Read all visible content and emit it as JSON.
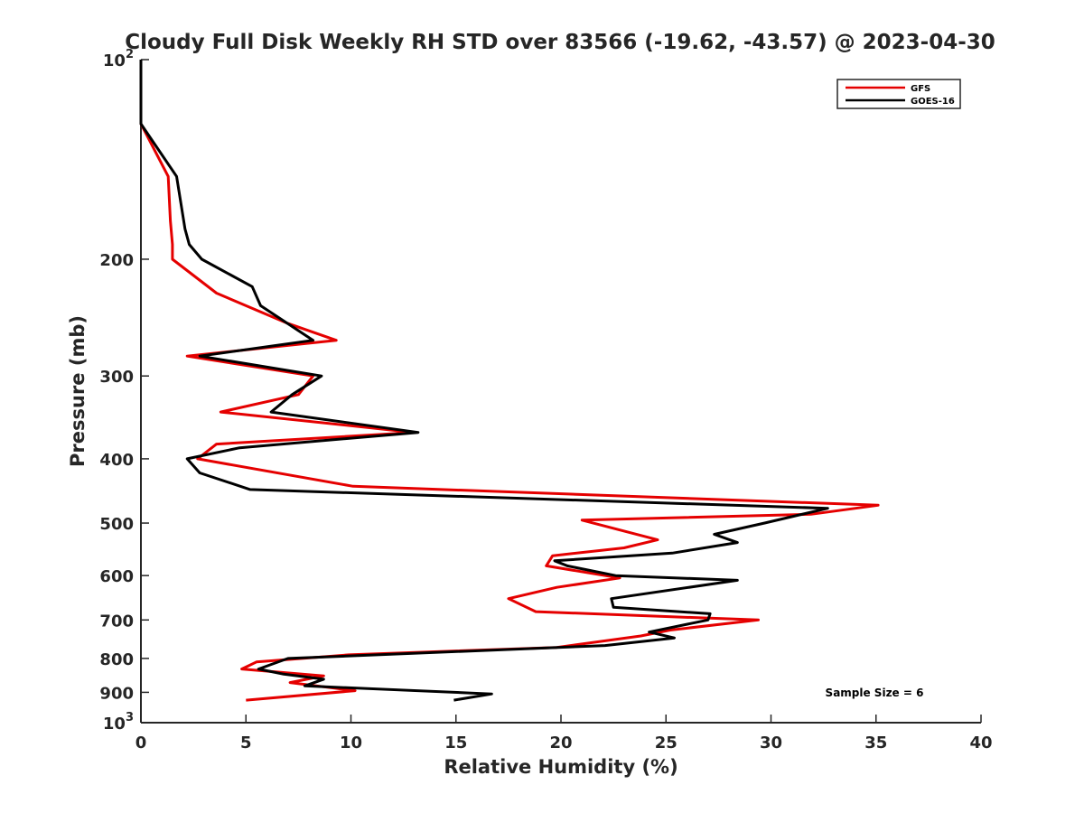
{
  "chart_data": {
    "type": "line",
    "title": "Cloudy Full Disk Weekly RH STD over 83566 (-19.62, -43.57) @ 2023-04-30",
    "xlabel": "Relative Humidity (%)",
    "ylabel": "Pressure (mb)",
    "xlim": [
      0,
      40
    ],
    "ylim": [
      100,
      1000
    ],
    "yscale": "log",
    "y_reversed": true,
    "grid": false,
    "x_ticks": [
      0,
      5,
      10,
      15,
      20,
      25,
      30,
      35,
      40
    ],
    "y_ticks": [
      {
        "value": 100,
        "label_base": "10",
        "label_exp": "2"
      },
      {
        "value": 200,
        "label": "200"
      },
      {
        "value": 300,
        "label": "300"
      },
      {
        "value": 400,
        "label": "400"
      },
      {
        "value": 500,
        "label": "500"
      },
      {
        "value": 600,
        "label": "600"
      },
      {
        "value": 700,
        "label": "700"
      },
      {
        "value": 800,
        "label": "800"
      },
      {
        "value": 900,
        "label": "900"
      },
      {
        "value": 1000,
        "label_base": "10",
        "label_exp": "3"
      }
    ],
    "legend_position": "top-right",
    "annotation": "Sample Size = 6",
    "series": [
      {
        "name": "GFS",
        "color": "#e50000",
        "points": [
          [
            0,
            100
          ],
          [
            0,
            125
          ],
          [
            1.3,
            150
          ],
          [
            1.4,
            175
          ],
          [
            1.5,
            190
          ],
          [
            1.5,
            200
          ],
          [
            3.6,
            225
          ],
          [
            7,
            250
          ],
          [
            9.3,
            265
          ],
          [
            2.2,
            280
          ],
          [
            8.2,
            300
          ],
          [
            7.5,
            320
          ],
          [
            3.8,
            340
          ],
          [
            13,
            365
          ],
          [
            3.6,
            380
          ],
          [
            2.7,
            400
          ],
          [
            10.1,
            440
          ],
          [
            35.1,
            470
          ],
          [
            31.9,
            485
          ],
          [
            21,
            495
          ],
          [
            24.6,
            530
          ],
          [
            23,
            545
          ],
          [
            19.6,
            560
          ],
          [
            19.3,
            580
          ],
          [
            22.8,
            605
          ],
          [
            19.8,
            625
          ],
          [
            17.5,
            650
          ],
          [
            18.8,
            680
          ],
          [
            29.4,
            700
          ],
          [
            25.2,
            725
          ],
          [
            23.8,
            740
          ],
          [
            19.8,
            770
          ],
          [
            9.9,
            790
          ],
          [
            5.5,
            810
          ],
          [
            4.8,
            830
          ],
          [
            8.7,
            850
          ],
          [
            7.1,
            870
          ],
          [
            10.2,
            895
          ],
          [
            5,
            925
          ]
        ]
      },
      {
        "name": "GOES-16",
        "color": "#000000",
        "points": [
          [
            0,
            100
          ],
          [
            0,
            125
          ],
          [
            1.7,
            150
          ],
          [
            2.1,
            180
          ],
          [
            2.3,
            190
          ],
          [
            2.9,
            200
          ],
          [
            5.3,
            220
          ],
          [
            5.7,
            235
          ],
          [
            8.2,
            265
          ],
          [
            2.8,
            280
          ],
          [
            8.6,
            300
          ],
          [
            7.2,
            320
          ],
          [
            6.2,
            340
          ],
          [
            13.2,
            365
          ],
          [
            4.7,
            385
          ],
          [
            2.2,
            400
          ],
          [
            2.8,
            420
          ],
          [
            5.2,
            445
          ],
          [
            32.7,
            475
          ],
          [
            29.7,
            500
          ],
          [
            27.3,
            520
          ],
          [
            28.4,
            535
          ],
          [
            25.3,
            555
          ],
          [
            19.7,
            570
          ],
          [
            20.3,
            580
          ],
          [
            22.6,
            600
          ],
          [
            28.4,
            610
          ],
          [
            22.4,
            650
          ],
          [
            22.5,
            670
          ],
          [
            27.1,
            685
          ],
          [
            27,
            700
          ],
          [
            24.2,
            730
          ],
          [
            25.4,
            745
          ],
          [
            22.1,
            765
          ],
          [
            7,
            800
          ],
          [
            5.6,
            830
          ],
          [
            6.8,
            845
          ],
          [
            8.7,
            860
          ],
          [
            7.8,
            880
          ],
          [
            16.7,
            905
          ],
          [
            14.9,
            925
          ]
        ]
      }
    ]
  }
}
